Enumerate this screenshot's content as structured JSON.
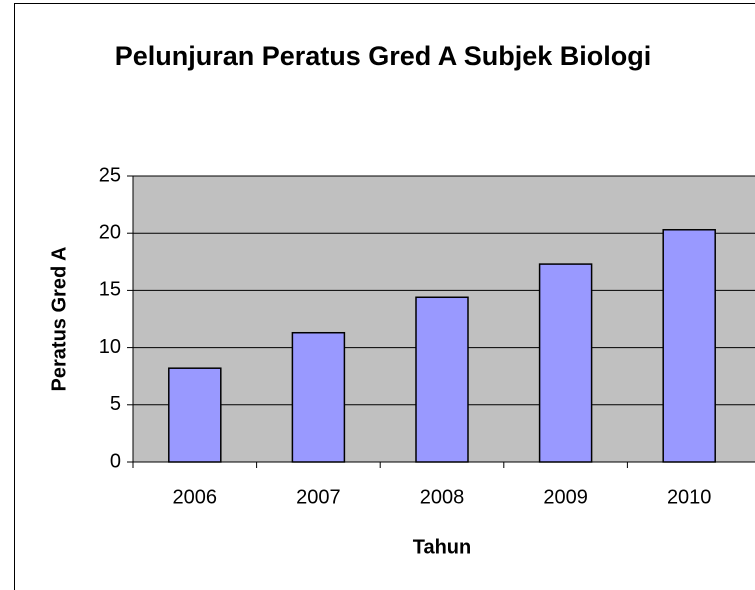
{
  "chart_data": {
    "type": "bar",
    "title": "Pelunjuran Peratus Gred A Subjek Biologi",
    "x_label": "Tahun",
    "y_label": "Peratus Gred A",
    "categories": [
      "2006",
      "2007",
      "2008",
      "2009",
      "2010"
    ],
    "values": [
      8.2,
      11.3,
      14.4,
      17.3,
      20.3
    ],
    "color": "#9999ff",
    "ylim": [
      0,
      25
    ],
    "yticks": [
      0,
      5,
      10,
      15,
      20,
      25
    ],
    "grid": true
  }
}
